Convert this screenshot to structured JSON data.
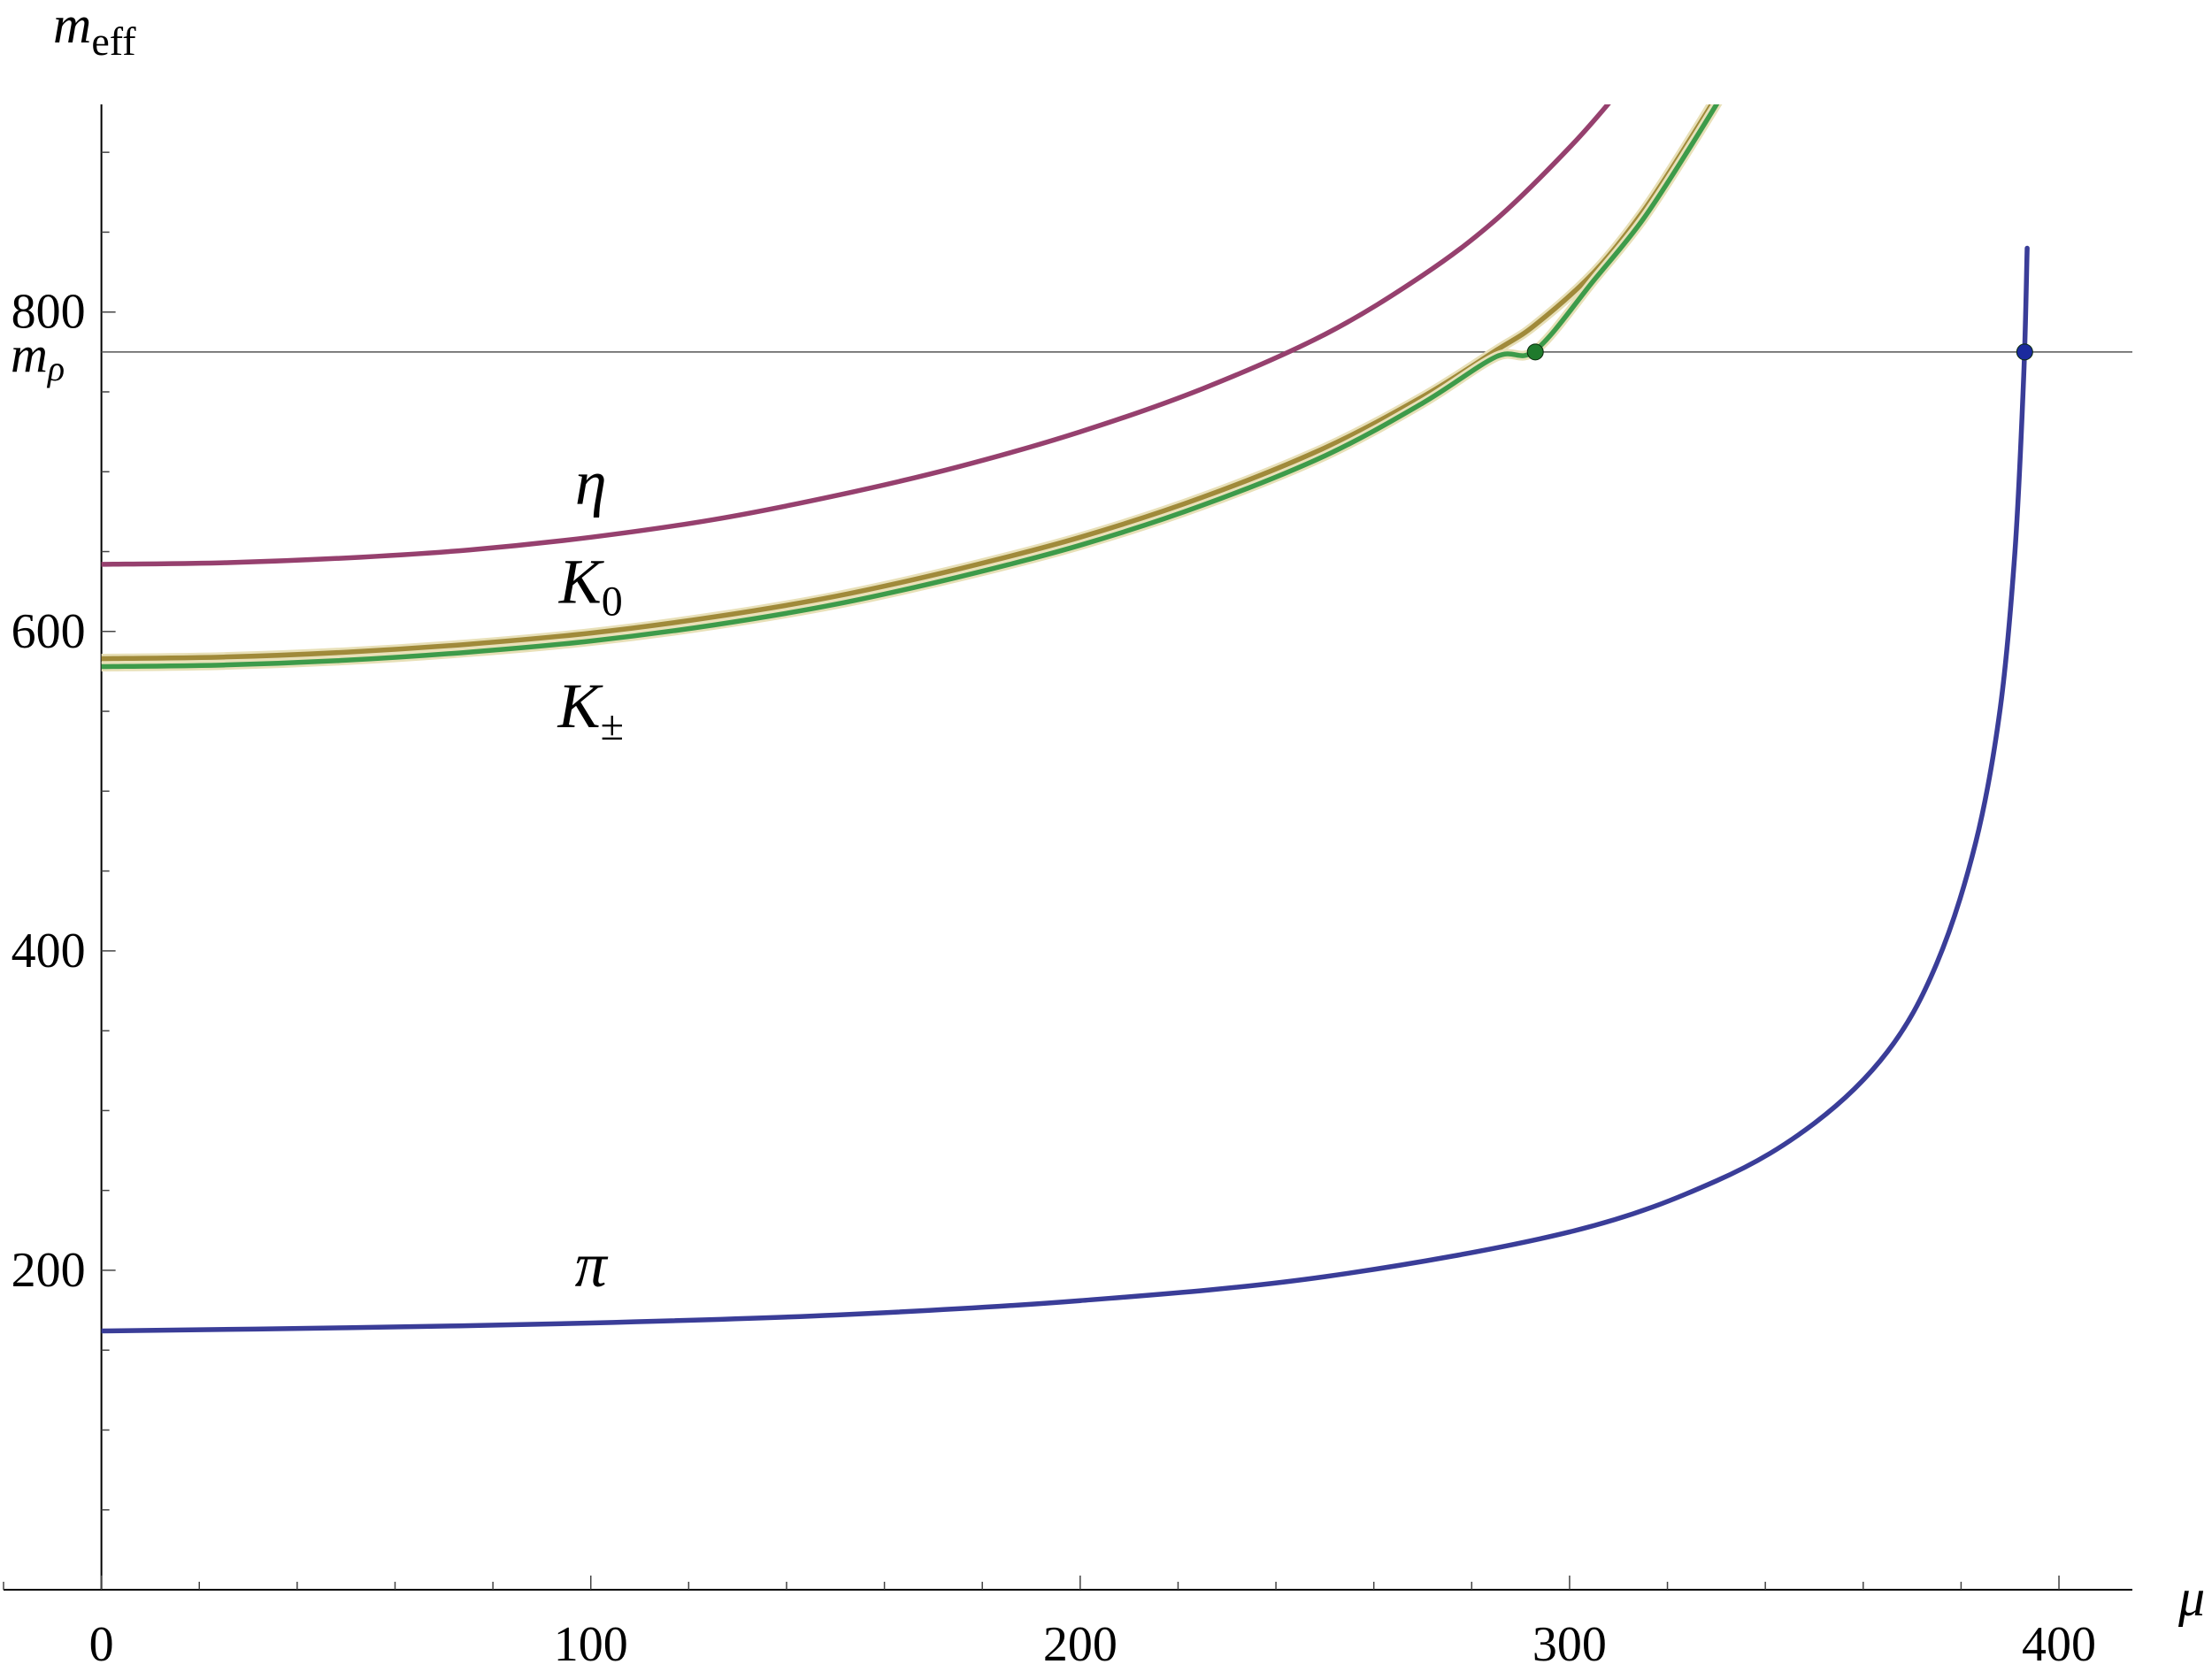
{
  "chart_data": {
    "type": "line",
    "xlabel": "μ",
    "ylabel": {
      "main": "m",
      "sub": "eff"
    },
    "xlim": [
      -20,
      415
    ],
    "ylim": [
      0,
      930
    ],
    "x_ticks": [
      0,
      100,
      200,
      300,
      400
    ],
    "y_ticks": [
      200,
      400,
      600,
      800
    ],
    "x_tick_labels": [
      "0",
      "100",
      "200",
      "300",
      "400"
    ],
    "y_tick_labels": [
      "200",
      "400",
      "600",
      "800"
    ],
    "grid": false,
    "reference_line": {
      "y": 775,
      "label": "m",
      "label_sub": "ρ"
    },
    "series": [
      {
        "name": "η",
        "color": "#96406e",
        "x": [
          0,
          25,
          50,
          75,
          100,
          125,
          150,
          175,
          200,
          225,
          250,
          270,
          285,
          300,
          310,
          317
        ],
        "y": [
          642,
          643,
          646,
          651,
          659,
          670,
          685,
          703,
          725,
          752,
          786,
          823,
          858,
          903,
          938,
          965
        ]
      },
      {
        "name": "K",
        "name_sub": "0",
        "color": "#a08a3a",
        "x": [
          0,
          25,
          50,
          75,
          100,
          125,
          150,
          175,
          200,
          225,
          250,
          270,
          285,
          293,
          305,
          315,
          325,
          335
        ],
        "y": [
          583,
          584,
          587,
          592,
          599,
          609,
          622,
          639,
          659,
          684,
          715,
          747,
          776,
          792,
          825,
          863,
          910,
          960
        ]
      },
      {
        "name": "K",
        "name_sub": "±",
        "color": "#3d9b4a",
        "x": [
          0,
          25,
          50,
          75,
          100,
          125,
          150,
          175,
          200,
          225,
          250,
          270,
          285,
          293,
          305,
          315,
          325,
          335
        ],
        "y": [
          578,
          579,
          582,
          587,
          594,
          604,
          617,
          634,
          654,
          679,
          710,
          743,
          772,
          776,
          820,
          858,
          905,
          955
        ]
      },
      {
        "name": "π",
        "color": "#3a3d98",
        "x": [
          0,
          50,
          100,
          150,
          200,
          250,
          300,
          330,
          350,
          365,
          375,
          383,
          388,
          391,
          392.8,
          393.5
        ],
        "y": [
          162,
          164,
          167,
          172,
          181,
          196,
          224,
          256,
          292,
          337,
          392,
          468,
          552,
          650,
          760,
          840
        ]
      }
    ],
    "markers": [
      {
        "x": 293,
        "y": 775,
        "color": "#1f7a2c"
      },
      {
        "x": 393,
        "y": 775,
        "color": "#1b2a9e"
      }
    ],
    "curve_labels": [
      {
        "series": 0,
        "x": 100,
        "y": 680
      },
      {
        "series": 1,
        "x": 100,
        "y": 618
      },
      {
        "series": 2,
        "x": 100,
        "y": 540
      },
      {
        "series": 3,
        "x": 100,
        "y": 190
      }
    ]
  }
}
